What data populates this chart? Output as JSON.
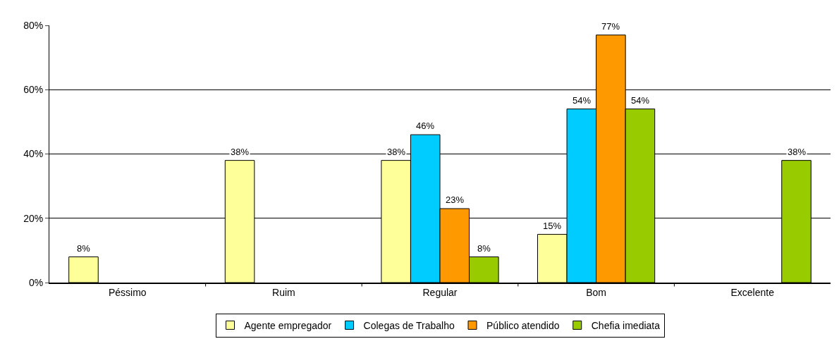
{
  "chart_data": {
    "type": "bar",
    "categories": [
      "Péssimo",
      "Ruim",
      "Regular",
      "Bom",
      "Excelente"
    ],
    "series": [
      {
        "name": "Agente empregador",
        "color": "#ffff99",
        "values": [
          8,
          38,
          38,
          15,
          null
        ],
        "value_labels": [
          "8%",
          "38%",
          "38%",
          "15%",
          null
        ]
      },
      {
        "name": "Colegas de Trabalho",
        "color": "#00ccff",
        "values": [
          null,
          null,
          46,
          54,
          null
        ],
        "value_labels": [
          null,
          null,
          "46%",
          "54%",
          null
        ]
      },
      {
        "name": "Público atendido",
        "color": "#ff9900",
        "values": [
          null,
          null,
          23,
          77,
          null
        ],
        "value_labels": [
          null,
          null,
          "23%",
          "77%",
          null
        ]
      },
      {
        "name": "Chefia imediata",
        "color": "#99cc00",
        "values": [
          null,
          null,
          8,
          54,
          38
        ],
        "value_labels": [
          null,
          null,
          "8%",
          "54%",
          "38%"
        ]
      }
    ],
    "ylim": [
      0,
      80
    ],
    "yticks": [
      {
        "value": 0,
        "label": "0%"
      },
      {
        "value": 20,
        "label": "20%"
      },
      {
        "value": 40,
        "label": "40%"
      },
      {
        "value": 60,
        "label": "60%"
      },
      {
        "value": 80,
        "label": "80%"
      }
    ],
    "grid": "y",
    "legend": "bottom"
  }
}
